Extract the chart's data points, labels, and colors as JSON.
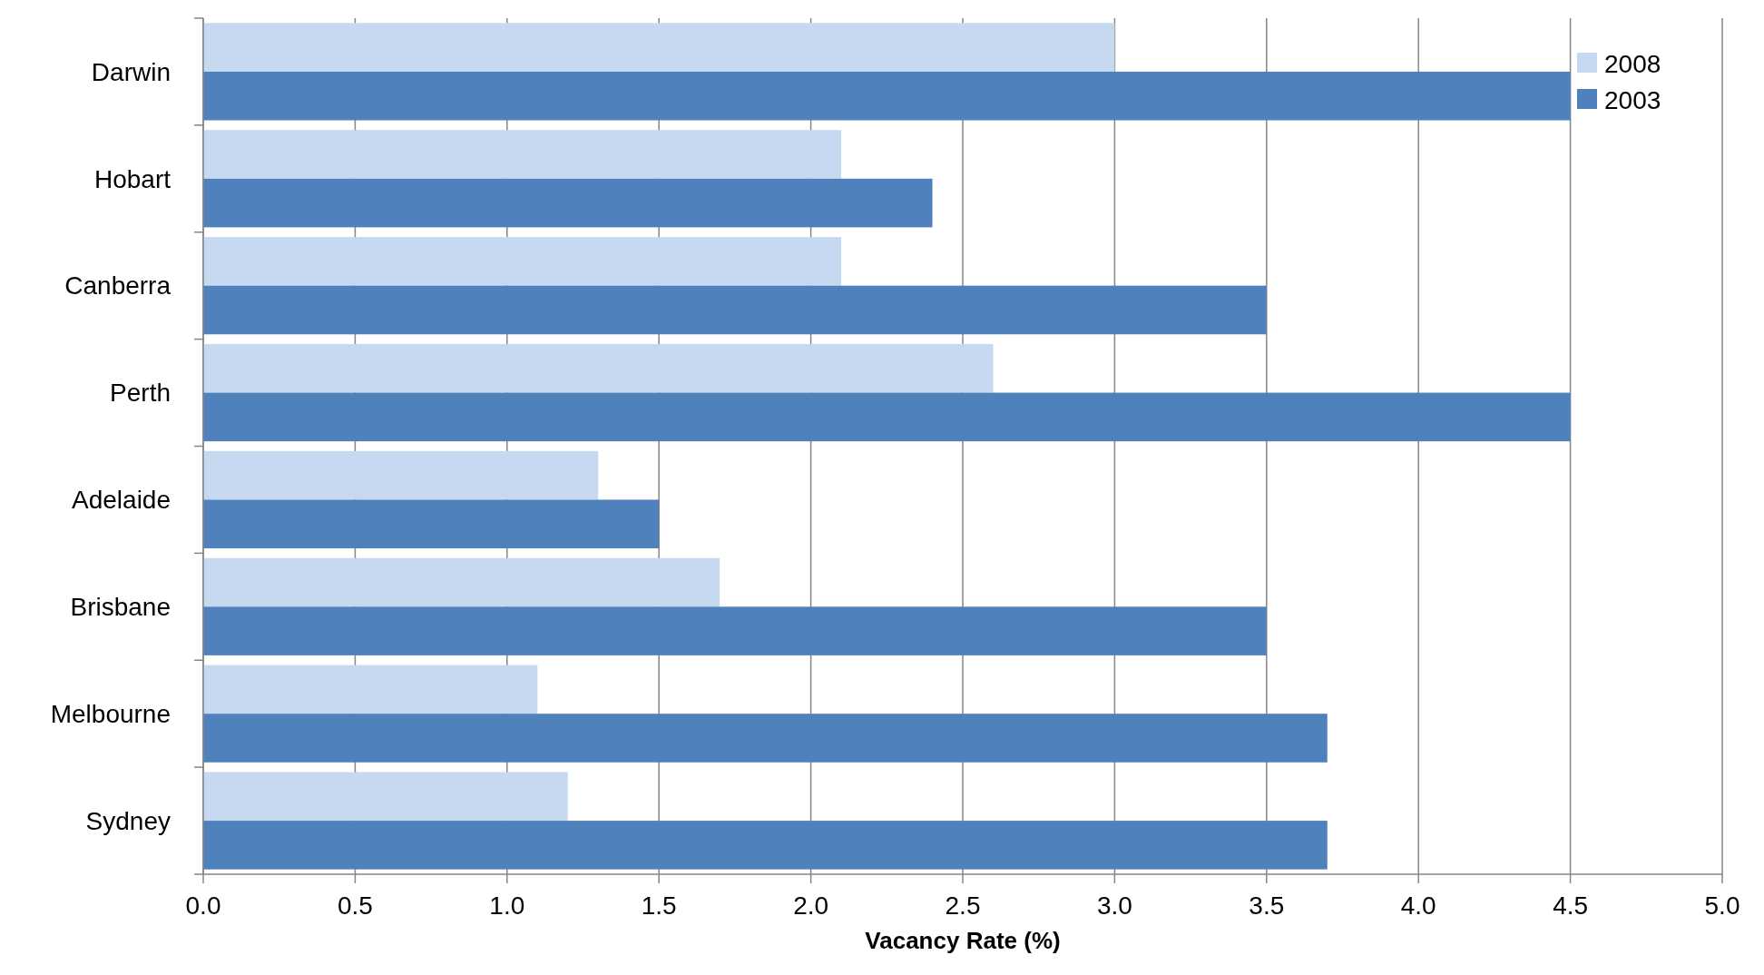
{
  "chart_data": {
    "type": "bar",
    "orientation": "horizontal",
    "xlabel": "Vacancy Rate (%)",
    "categories": [
      "Darwin",
      "Hobart",
      "Canberra",
      "Perth",
      "Adelaide",
      "Brisbane",
      "Melbourne",
      "Sydney"
    ],
    "series": [
      {
        "name": "2008",
        "color": "#c6d9f1",
        "values": [
          3.0,
          2.1,
          2.1,
          2.6,
          1.3,
          1.7,
          1.1,
          1.2
        ]
      },
      {
        "name": "2003",
        "color": "#4f81bd",
        "values": [
          4.5,
          2.4,
          3.5,
          4.5,
          1.5,
          3.5,
          3.7,
          3.7
        ]
      }
    ],
    "xlim": [
      0,
      5
    ],
    "xticks": [
      {
        "value": 0,
        "label": "0.0"
      },
      {
        "value": 0.5,
        "label": "0.5"
      },
      {
        "value": 1,
        "label": "1.0"
      },
      {
        "value": 1.5,
        "label": "1.5"
      },
      {
        "value": 2,
        "label": "2.0"
      },
      {
        "value": 2.5,
        "label": "2.5"
      },
      {
        "value": 3,
        "label": "3.0"
      },
      {
        "value": 3.5,
        "label": "3.5"
      },
      {
        "value": 4,
        "label": "4.0"
      },
      {
        "value": 4.5,
        "label": "4.5"
      },
      {
        "value": 5,
        "label": "5.0"
      }
    ],
    "grid": "x",
    "legend": "top right"
  }
}
